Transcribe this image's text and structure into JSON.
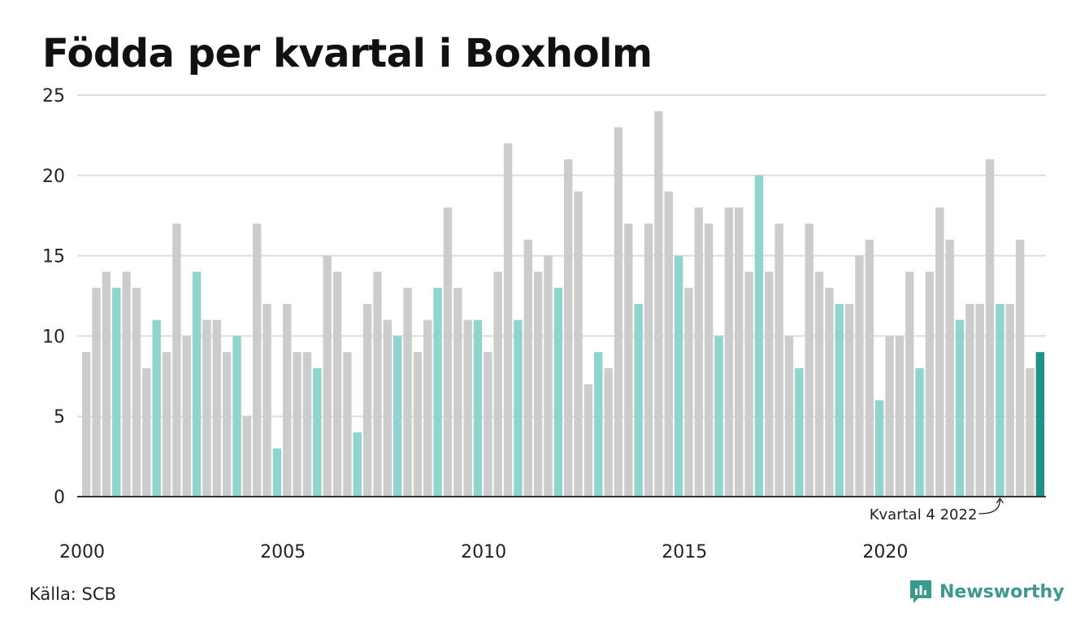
{
  "title": "Födda per kvartal i Boxholm",
  "source": "Källa: SCB",
  "brand": "Newsworthy",
  "colors": {
    "bar_default": "#cccccc",
    "bar_q4": "#8dd5cd",
    "bar_latest": "#1f9486",
    "grid": "#dddddd",
    "axis": "#333333",
    "brand": "#3a9b8c"
  },
  "chart_data": {
    "type": "bar",
    "title": "Födda per kvartal i Boxholm",
    "xlabel": "",
    "ylabel": "",
    "ylim": [
      0,
      25
    ],
    "yticks": [
      0,
      5,
      10,
      15,
      20,
      25
    ],
    "xtick_labels": [
      "2000",
      "2005",
      "2010",
      "2015",
      "2020"
    ],
    "grid": true,
    "highlight": "fourth quarter of each year; latest quarter darker",
    "start_year": 2000,
    "values": [
      9,
      13,
      14,
      13,
      14,
      13,
      8,
      11,
      9,
      17,
      10,
      14,
      11,
      11,
      9,
      10,
      5,
      17,
      12,
      3,
      12,
      9,
      9,
      8,
      15,
      14,
      9,
      4,
      12,
      14,
      11,
      10,
      13,
      9,
      11,
      13,
      18,
      13,
      11,
      11,
      9,
      14,
      22,
      11,
      16,
      14,
      15,
      13,
      21,
      19,
      7,
      9,
      8,
      23,
      17,
      12,
      17,
      24,
      19,
      15,
      13,
      18,
      17,
      10,
      18,
      18,
      14,
      20,
      14,
      17,
      10,
      8,
      17,
      14,
      13,
      12,
      12,
      15,
      16,
      6,
      10,
      10,
      14,
      8,
      14,
      18,
      16,
      11,
      12,
      12,
      21,
      12,
      12,
      16,
      8,
      9
    ],
    "annotation": {
      "text": "Kvartal 4 2022",
      "target_year": 2022,
      "target_quarter": 4
    }
  }
}
